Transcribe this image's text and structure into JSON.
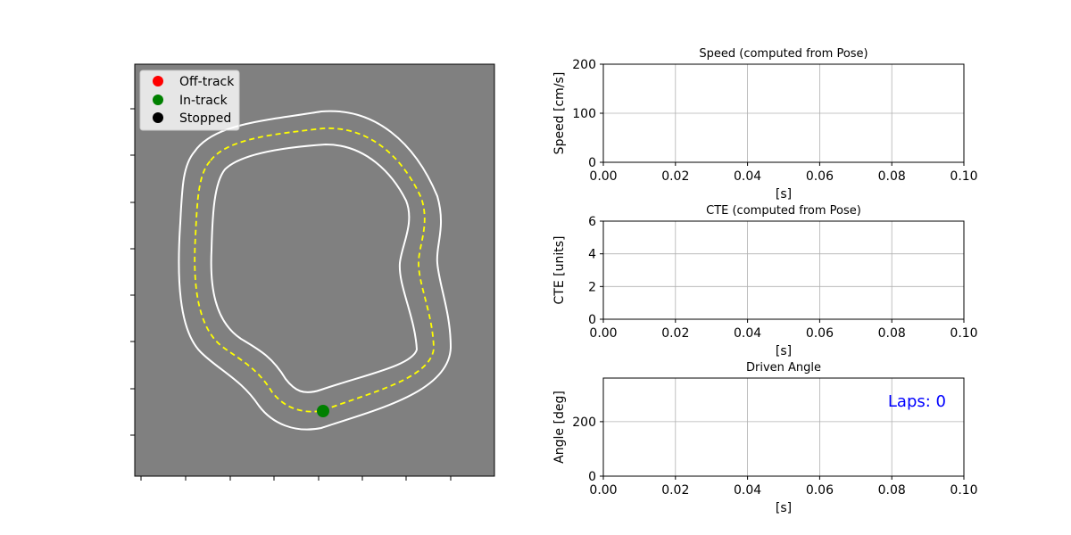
{
  "track_panel": {
    "background_color": "#808080",
    "legend": [
      {
        "label": "Off-track",
        "color": "#ff0000"
      },
      {
        "label": "In-track",
        "color": "#008000"
      },
      {
        "label": "Stopped",
        "color": "#000000"
      }
    ],
    "car_marker": {
      "state": "In-track",
      "color": "#008000"
    }
  },
  "chart_data": [
    {
      "type": "line",
      "title": "Speed (computed from Pose)",
      "xlabel": "[s]",
      "ylabel": "Speed [cm/s]",
      "xlim": [
        0,
        0.1
      ],
      "ylim": [
        0,
        200
      ],
      "xticks": [
        "0.00",
        "0.02",
        "0.04",
        "0.06",
        "0.08",
        "0.10"
      ],
      "yticks": [
        "0",
        "100",
        "200"
      ],
      "ytick_values": [
        0,
        100,
        200
      ],
      "grid": true,
      "series": []
    },
    {
      "type": "line",
      "title": "CTE (computed from Pose)",
      "xlabel": "[s]",
      "ylabel": "CTE [units]",
      "xlim": [
        0,
        0.1
      ],
      "ylim": [
        0,
        6
      ],
      "xticks": [
        "0.00",
        "0.02",
        "0.04",
        "0.06",
        "0.08",
        "0.10"
      ],
      "yticks": [
        "0",
        "2",
        "4",
        "6"
      ],
      "ytick_values": [
        0,
        2,
        4,
        6
      ],
      "grid": true,
      "series": []
    },
    {
      "type": "line",
      "title": "Driven Angle",
      "xlabel": "[s]",
      "ylabel": "Angle [deg]",
      "xlim": [
        0,
        0.1
      ],
      "ylim": [
        0,
        360
      ],
      "xticks": [
        "0.00",
        "0.02",
        "0.04",
        "0.06",
        "0.08",
        "0.10"
      ],
      "yticks": [
        "0",
        "200"
      ],
      "ytick_values": [
        0,
        200
      ],
      "grid": true,
      "series": [],
      "annotation": {
        "text": "Laps: 0",
        "color": "#0000ff"
      }
    }
  ]
}
